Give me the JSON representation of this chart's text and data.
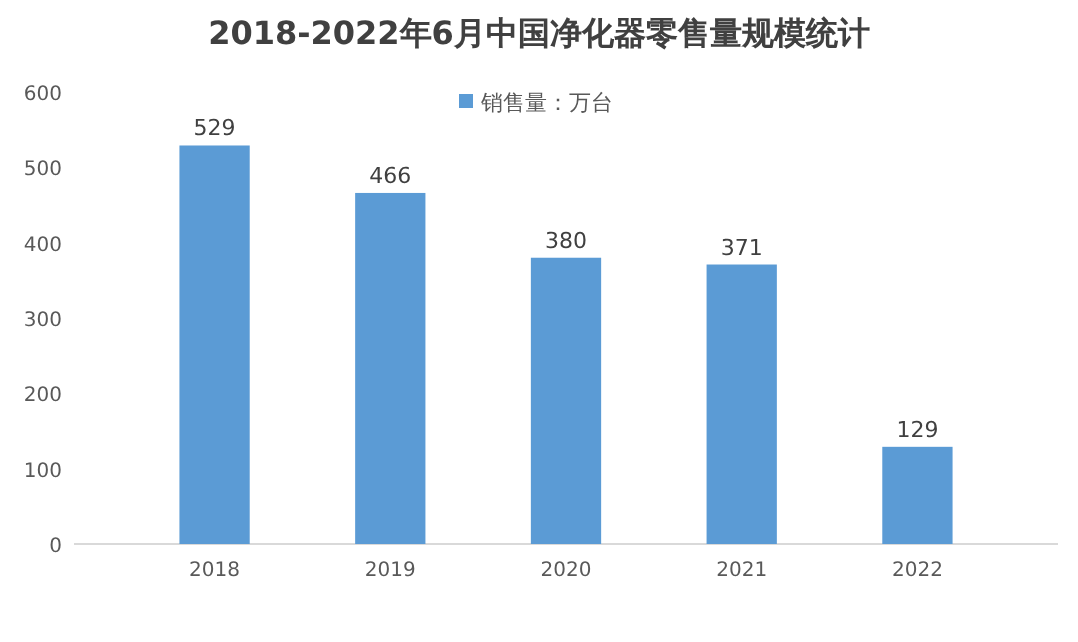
{
  "chart_data": {
    "type": "bar",
    "title": "2018-2022年6月中国净化器零售量规模统计",
    "categories": [
      "2018",
      "2019",
      "2020",
      "2021",
      "2022"
    ],
    "series": [
      {
        "name": "销售量：万台",
        "color": "#5b9bd5",
        "values": [
          529,
          466,
          380,
          371,
          129
        ]
      }
    ],
    "ylim": [
      0,
      600
    ],
    "yticks": [
      0,
      100,
      200,
      300,
      400,
      500,
      600
    ],
    "grid": false,
    "legend": "top",
    "data_labels": true
  }
}
